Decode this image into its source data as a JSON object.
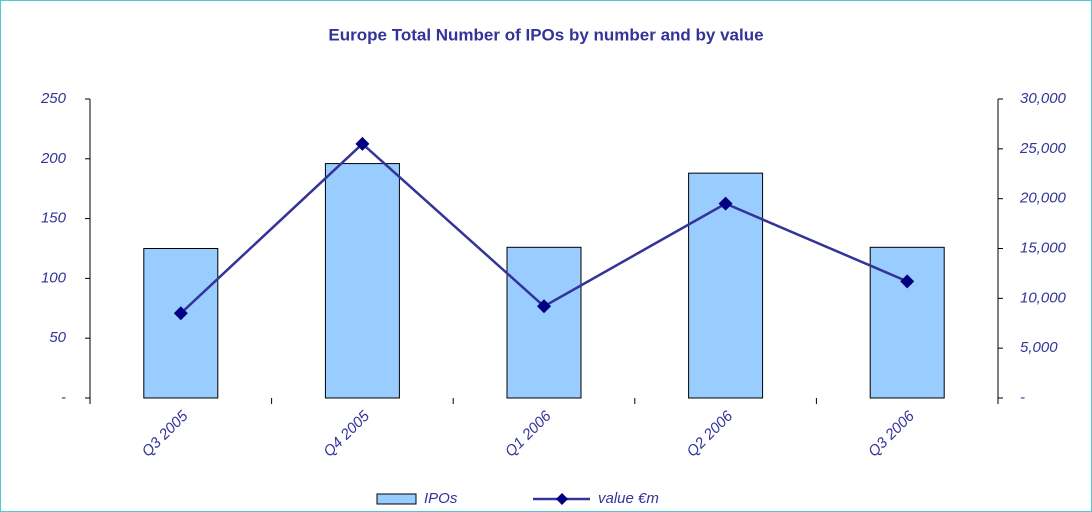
{
  "chart_data": {
    "type": "bar",
    "title": "Europe Total Number of IPOs by number and by value",
    "categories": [
      "Q3 2005",
      "Q4 2005",
      "Q1 2006",
      "Q2 2006",
      "Q3 2006"
    ],
    "series": [
      {
        "name": "IPOs",
        "type": "bar",
        "color": "#99ccff",
        "values": [
          125,
          196,
          126,
          188,
          126
        ]
      },
      {
        "name": "value €m",
        "type": "line",
        "axis": "y2",
        "color": "#333399",
        "values": [
          8500,
          25500,
          9200,
          19500,
          11700
        ]
      }
    ],
    "ylim": [
      0,
      250
    ],
    "yticks": [
      {
        "value": 0,
        "label": "-"
      },
      50,
      100,
      150,
      200,
      250
    ],
    "y2lim": [
      0,
      30000
    ],
    "y2ticks": [
      {
        "value": 0,
        "label": "-"
      },
      {
        "value": 5000,
        "label": "5,000"
      },
      {
        "value": 10000,
        "label": "10,000"
      },
      {
        "value": 15000,
        "label": "15,000"
      },
      {
        "value": 20000,
        "label": "20,000"
      },
      {
        "value": 25000,
        "label": "25,000"
      },
      {
        "value": 30000,
        "label": "30,000"
      }
    ],
    "grid": false,
    "legend": "bottom"
  }
}
